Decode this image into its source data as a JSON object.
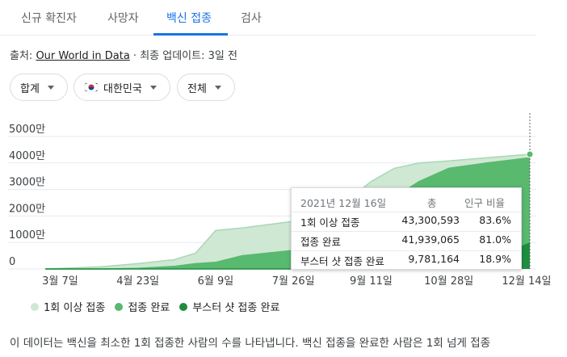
{
  "tabs": [
    {
      "label": "신규 확진자"
    },
    {
      "label": "사망자"
    },
    {
      "label": "백신 접종"
    },
    {
      "label": "검사"
    }
  ],
  "source": {
    "prefix": "출처: ",
    "link": "Our World in Data",
    "updated": " · 최종 업데이트: 3일 전"
  },
  "filters": {
    "dose": "합계",
    "region": "대한민국",
    "age": "전체"
  },
  "colors": {
    "accent": "#1a73e8",
    "first_dose": "#cfe8d3",
    "complete": "#58b96f",
    "booster": "#1e8e3e"
  },
  "chart_data": {
    "type": "area",
    "y_ticks": [
      "5000만",
      "4000만",
      "3000만",
      "2000만",
      "1000만",
      "0"
    ],
    "x_ticks": [
      "3월 7일",
      "4월 23일",
      "6월 9일",
      "7월 26일",
      "9월 11일",
      "10월 28일",
      "12월 14일"
    ],
    "ylim": [
      0,
      50000000
    ],
    "grid": true,
    "x": [
      "2021-02-26",
      "2021-03-31",
      "2021-04-23",
      "2021-05-15",
      "2021-05-28",
      "2021-06-09",
      "2021-06-25",
      "2021-07-26",
      "2021-08-15",
      "2021-09-01",
      "2021-09-11",
      "2021-09-25",
      "2021-10-10",
      "2021-10-28",
      "2021-11-20",
      "2021-12-16"
    ],
    "series": [
      {
        "name": "1회 이상 접종",
        "values": [
          0,
          800000,
          2000000,
          3500000,
          6000000,
          14500000,
          15500000,
          18000000,
          22000000,
          28000000,
          33000000,
          38000000,
          40000000,
          40800000,
          42000000,
          43300593
        ]
      },
      {
        "name": "접종 완료",
        "values": [
          0,
          0,
          200000,
          1000000,
          2000000,
          2500000,
          5000000,
          7000000,
          9000000,
          15000000,
          20000000,
          27000000,
          33000000,
          38000000,
          40000000,
          41939065
        ]
      },
      {
        "name": "부스터 샷 접종 완료",
        "values": [
          0,
          0,
          0,
          0,
          0,
          0,
          0,
          0,
          0,
          0,
          0,
          0,
          200000,
          1000000,
          3000000,
          9781164
        ]
      }
    ]
  },
  "tooltip": {
    "date": "2021년 12월 16일",
    "col_total": "총",
    "col_pct": "인구 비율",
    "rows": [
      {
        "label": "1회 이상 접종",
        "total": "43,300,593",
        "pct": "83.6%"
      },
      {
        "label": "접종 완료",
        "total": "41,939,065",
        "pct": "81.0%"
      },
      {
        "label": "부스터 샷 접종 완료",
        "total": "9,781,164",
        "pct": "18.9%"
      }
    ]
  },
  "legend": [
    {
      "label": "1회 이상 접종"
    },
    {
      "label": "접종 완료"
    },
    {
      "label": "부스터 샷 접종 완료"
    }
  ],
  "description": "이 데이터는 백신을 최소한 1회 접종한 사람의 수를 나타냅니다. 백신 접종을 완료한 사람은 1회 넘게 접종"
}
